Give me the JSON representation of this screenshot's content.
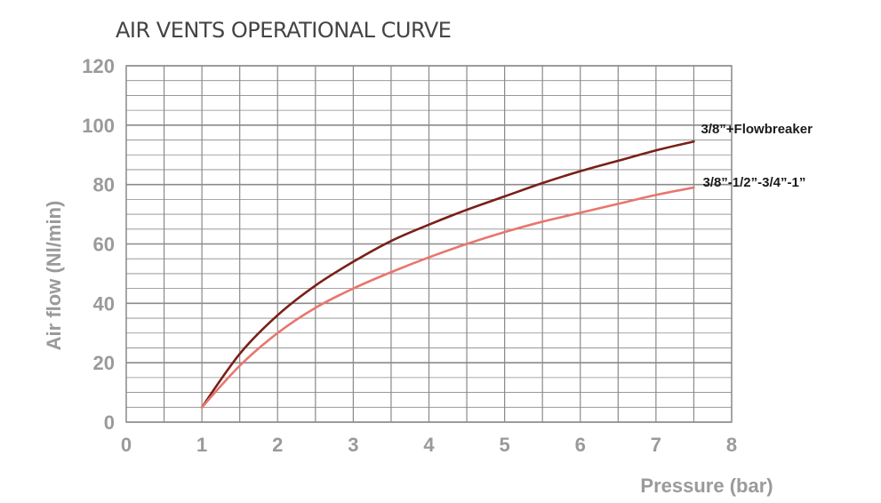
{
  "chart_data": {
    "type": "line",
    "title": "AIR VENTS OPERATIONAL CURVE",
    "xlabel": "Pressure (bar)",
    "ylabel": "Air flow (Nl/min)",
    "xlim": [
      0,
      8
    ],
    "ylim": [
      0,
      120
    ],
    "x_ticks": [
      "0",
      "1",
      "2",
      "3",
      "4",
      "5",
      "6",
      "7",
      "8"
    ],
    "y_ticks": [
      "0",
      "20",
      "40",
      "60",
      "80",
      "100",
      "120"
    ],
    "grid": true,
    "series": [
      {
        "name": "3/8”+Flowbreaker",
        "color": "#7a2018",
        "x": [
          1,
          1.5,
          2,
          2.5,
          3,
          3.5,
          4,
          4.5,
          5,
          5.5,
          6,
          6.5,
          7,
          7.5
        ],
        "y": [
          5,
          23,
          36,
          46,
          54,
          61,
          66.5,
          71.5,
          76,
          80.5,
          84.5,
          88,
          91.5,
          94.5
        ]
      },
      {
        "name": "3/8”-1/2”-3/4”-1”",
        "color": "#e8766d",
        "x": [
          1,
          1.5,
          2,
          2.5,
          3,
          3.5,
          4,
          4.5,
          5,
          5.5,
          6,
          6.5,
          7,
          7.5
        ],
        "y": [
          5,
          19,
          30,
          38.5,
          45,
          50.5,
          55.5,
          60,
          64,
          67.5,
          70.5,
          73.5,
          76.5,
          79
        ]
      }
    ]
  }
}
